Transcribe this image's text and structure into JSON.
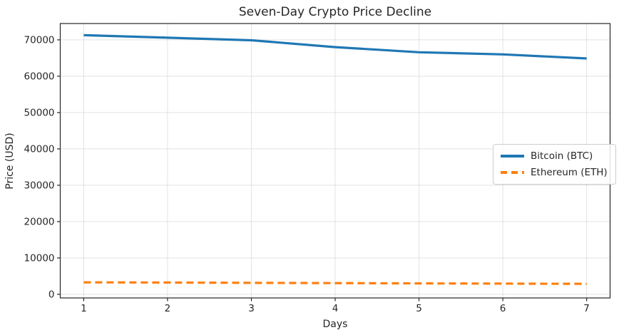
{
  "figure": {
    "kind": "matplotlib-line-chart"
  },
  "chart_data": {
    "type": "line",
    "title": "Seven-Day Crypto Price Decline",
    "xlabel": "Days",
    "ylabel": "Price (USD)",
    "x": [
      1,
      2,
      3,
      4,
      5,
      6,
      7
    ],
    "series": [
      {
        "name": "Bitcoin (BTC)",
        "color": "#1f77b4",
        "style": "solid",
        "values": [
          71300,
          70600,
          69900,
          68000,
          66600,
          66000,
          64900
        ]
      },
      {
        "name": "Ethereum (ETH)",
        "color": "#ff7f0e",
        "style": "dashed",
        "values": [
          3300,
          3230,
          3160,
          3080,
          3010,
          2950,
          2880
        ]
      }
    ],
    "xticks": [
      1,
      2,
      3,
      4,
      5,
      6,
      7
    ],
    "yticks": [
      0,
      10000,
      20000,
      30000,
      40000,
      50000,
      60000,
      70000
    ],
    "xlim": [
      0.72,
      7.28
    ],
    "ylim": [
      -1000,
      74500
    ],
    "grid": true,
    "legend_position": "center right",
    "grid_color": "rgba(176,176,176,0.35)",
    "spine_color": "#262626",
    "tick_color": "#262626"
  }
}
